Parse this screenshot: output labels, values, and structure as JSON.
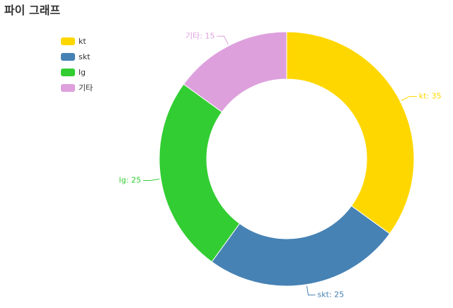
{
  "header": {
    "title": "파이 그래프"
  },
  "chart_data": {
    "type": "pie",
    "variant": "donut",
    "legend_position": "top-left",
    "slices": [
      {
        "label": "kt",
        "value": 35,
        "color": "#FFD700"
      },
      {
        "label": "skt",
        "value": 25,
        "color": "#4682B4"
      },
      {
        "label": "lg",
        "value": 25,
        "color": "#32CD32"
      },
      {
        "label": "기타",
        "value": 15,
        "color": "#DDA0DD"
      }
    ]
  }
}
